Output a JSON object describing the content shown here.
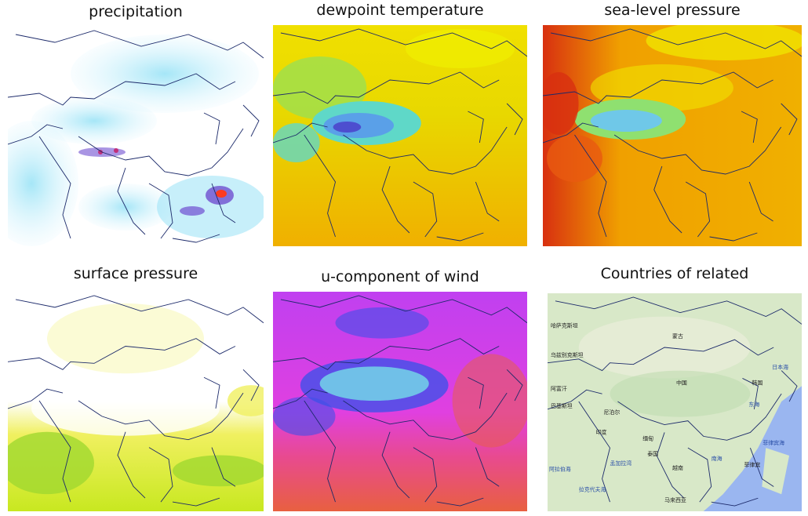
{
  "panels": [
    {
      "id": "precipitation",
      "title": "precipitation",
      "gradient": [
        "#ffffff",
        "#dff6ff",
        "#8fe0f5",
        "#4fb3e8",
        "#6f4fd0",
        "#c0307a",
        "#ff3b20"
      ]
    },
    {
      "id": "dewpoint",
      "title": "dewpoint temperature",
      "gradient": [
        "#f0e000",
        "#e8d800",
        "#9be050",
        "#5fd8c8",
        "#5aa0e8",
        "#4a3ac8"
      ]
    },
    {
      "id": "slp",
      "title": "sea-level pressure",
      "gradient": [
        "#f0e400",
        "#f0a000",
        "#e85a10",
        "#d83010",
        "#8fe070",
        "#6fc8e8"
      ]
    },
    {
      "id": "sp",
      "title": "surface pressure",
      "gradient": [
        "#ffffff",
        "#fbfbd0",
        "#f0f060",
        "#c8e820",
        "#a0d830"
      ]
    },
    {
      "id": "u-wind",
      "title": "u-component of wind",
      "gradient": [
        "#e86040",
        "#e84a90",
        "#e040e0",
        "#c040f0",
        "#4050e8",
        "#70c0e8"
      ]
    },
    {
      "id": "countries",
      "title": "Countries of related"
    }
  ],
  "country_map": {
    "land_color": "#d8e8c8",
    "sea_color": "#9ab6f0",
    "labels": [
      {
        "text": "蒙古",
        "kind": "country"
      },
      {
        "text": "中国",
        "kind": "country"
      },
      {
        "text": "韩国",
        "kind": "country"
      },
      {
        "text": "日本海",
        "kind": "sea"
      },
      {
        "text": "东海",
        "kind": "sea"
      },
      {
        "text": "菲律宾海",
        "kind": "sea"
      },
      {
        "text": "南海",
        "kind": "sea"
      },
      {
        "text": "印度",
        "kind": "country"
      },
      {
        "text": "缅甸",
        "kind": "country"
      },
      {
        "text": "泰国",
        "kind": "country"
      },
      {
        "text": "越南",
        "kind": "country"
      },
      {
        "text": "孟加拉湾",
        "kind": "sea"
      },
      {
        "text": "阿拉伯海",
        "kind": "sea"
      },
      {
        "text": "哈萨克斯坦",
        "kind": "country"
      },
      {
        "text": "乌兹别克斯坦",
        "kind": "country"
      },
      {
        "text": "阿富汗",
        "kind": "country"
      },
      {
        "text": "巴基斯坦",
        "kind": "country"
      },
      {
        "text": "尼泊尔",
        "kind": "country"
      },
      {
        "text": "马来西亚",
        "kind": "country"
      },
      {
        "text": "菲律宾",
        "kind": "country"
      },
      {
        "text": "拉克代夫海",
        "kind": "sea"
      }
    ]
  }
}
